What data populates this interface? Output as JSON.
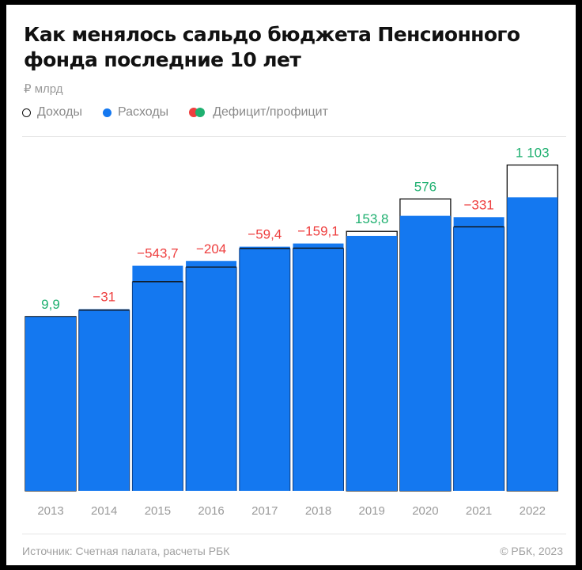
{
  "title": "Как менялось сальдо бюджета Пенсионного фонда последние 10 лет",
  "unit": "₽ млрд",
  "legend": {
    "income": "Доходы",
    "expense": "Расходы",
    "balance": "Дефицит/профицит"
  },
  "colors": {
    "expense": "#1478f0",
    "deficit": "#ee3e3e",
    "surplus": "#1fb070",
    "income_outline": "#111111"
  },
  "footer": {
    "source": "Источник: Счетная палата, расчеты РБК",
    "copyright": "© РБК, 2023"
  },
  "chart_data": {
    "type": "bar",
    "categories": [
      "2013",
      "2014",
      "2015",
      "2016",
      "2017",
      "2018",
      "2019",
      "2020",
      "2021",
      "2022"
    ],
    "series": [
      {
        "name": "Доходы",
        "values": [
          5939,
          6159,
          7127,
          7626,
          8260,
          8269,
          8842,
          9947,
          8995,
          11103
        ]
      },
      {
        "name": "Расходы",
        "values": [
          5929,
          6190,
          7671,
          7830,
          8319,
          8428,
          8688,
          9371,
          9326,
          10000
        ]
      }
    ],
    "balance_labels": [
      "9,9",
      "−31",
      "−543,7",
      "−204",
      "−59,4",
      "−159,1",
      "153,8",
      "576",
      "−331",
      "1 103"
    ],
    "balance_signs": [
      "surplus",
      "deficit",
      "deficit",
      "deficit",
      "deficit",
      "deficit",
      "surplus",
      "surplus",
      "deficit",
      "surplus"
    ],
    "ylim": [
      0,
      11600
    ],
    "grid": false,
    "legend_position": "top-left"
  }
}
